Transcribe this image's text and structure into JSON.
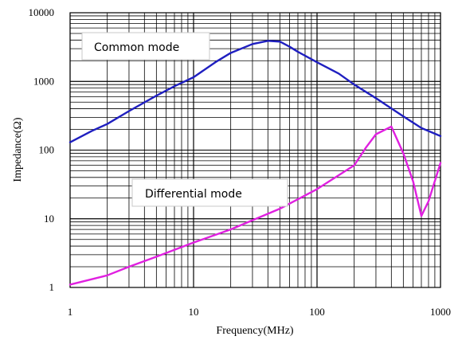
{
  "chart_data": {
    "type": "line",
    "title": "",
    "xlabel": "Frequency(MHz)",
    "ylabel": "Impedance(Ω)",
    "x_scale": "log",
    "y_scale": "log",
    "xlim": [
      1,
      1000
    ],
    "ylim": [
      1,
      10000
    ],
    "x_ticks": [
      "1",
      "10",
      "100",
      "1000"
    ],
    "y_ticks": [
      "1",
      "10",
      "100",
      "1000",
      "10000"
    ],
    "grid": true,
    "series": [
      {
        "name": "Common mode",
        "color": "#1f1fc0",
        "x": [
          1,
          1.5,
          2,
          3,
          5,
          7,
          10,
          15,
          20,
          30,
          40,
          50,
          60,
          70,
          100,
          150,
          200,
          300,
          500,
          700,
          1000
        ],
        "y": [
          130,
          190,
          240,
          370,
          620,
          850,
          1150,
          1900,
          2600,
          3500,
          3900,
          3800,
          3200,
          2700,
          1900,
          1300,
          900,
          570,
          310,
          210,
          160
        ]
      },
      {
        "name": "Differential mode",
        "color": "#e020e0",
        "x": [
          1,
          2,
          3,
          5,
          10,
          20,
          50,
          100,
          200,
          250,
          300,
          400,
          500,
          600,
          700,
          800,
          1000
        ],
        "y": [
          1.1,
          1.5,
          2.0,
          2.8,
          4.5,
          7.0,
          14,
          27,
          60,
          110,
          170,
          220,
          90,
          35,
          11,
          18,
          65
        ]
      }
    ],
    "annotations": [
      {
        "text": "Common mode",
        "series": 0
      },
      {
        "text": "Differential mode",
        "series": 1
      }
    ]
  }
}
